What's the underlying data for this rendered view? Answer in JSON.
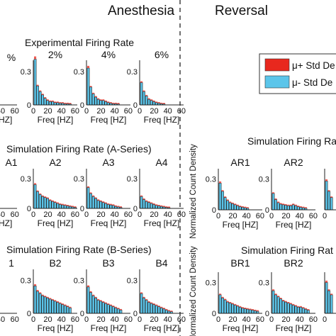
{
  "header": {
    "left": "Anesthesia",
    "right": "Reversal"
  },
  "legend": {
    "plus": {
      "label": "μ+ Std De",
      "color": "#e8281e"
    },
    "minus": {
      "label": "μ- Std De",
      "color": "#5bc5ea"
    }
  },
  "rows": [
    {
      "title": "Experimental Firing Rate",
      "ylabel": ""
    },
    {
      "title": "Simulation Firing Rate (A-Series)",
      "ylabel": ""
    },
    {
      "title": "Simulation Firing Rate (B-Series)",
      "ylabel": ""
    },
    {
      "title": "Simulation Firing Rat",
      "ylabel": "Normalized Count Density"
    },
    {
      "title": "Simulation Firing Rat",
      "ylabel": "Normalized Count Density"
    }
  ],
  "chart_data": [
    {
      "type": "bar",
      "title": "%",
      "xlabel": "[HZ]",
      "ticks": [
        "40",
        "60"
      ],
      "ylim": [
        0,
        0.4
      ],
      "values": [
        0.02,
        0.015,
        0.01,
        0.01,
        0.008,
        0.015,
        0.01,
        0.008,
        0.006,
        0.004
      ]
    },
    {
      "type": "bar",
      "title": "2%",
      "xlabel": "Freq [HZ]",
      "ticks": [
        "0",
        "20",
        "40",
        "60"
      ],
      "yticks": [
        "0.3",
        "0"
      ],
      "ylim": [
        0,
        0.4
      ],
      "values": [
        0.41,
        0.17,
        0.12,
        0.09,
        0.06,
        0.04,
        0.03,
        0.03,
        0.02,
        0.02,
        0.015,
        0.015,
        0.01,
        0.01,
        0.008
      ]
    },
    {
      "type": "bar",
      "title": "4%",
      "xlabel": "Freq [HZ]",
      "ticks": [
        "0",
        "20",
        "40",
        "60"
      ],
      "yticks": [
        "0.3",
        "0"
      ],
      "ylim": [
        0,
        0.4
      ],
      "values": [
        0.33,
        0.16,
        0.1,
        0.07,
        0.05,
        0.04,
        0.04,
        0.03,
        0.02,
        0.015,
        0.01,
        0.01,
        0.008
      ]
    },
    {
      "type": "bar",
      "title": "6%",
      "xlabel": "Freq [HZ]",
      "ticks": [
        "0",
        "20",
        "40",
        "60"
      ],
      "yticks": [
        "0.3",
        "0"
      ],
      "ylim": [
        0,
        0.4
      ],
      "values": [
        0.2,
        0.12,
        0.08,
        0.05,
        0.04,
        0.03,
        0.02,
        0.015,
        0.01,
        0.008
      ]
    },
    {
      "type": "bar",
      "title": "A1",
      "xlabel": "[HZ]",
      "ticks": [
        "40",
        "60"
      ],
      "ylim": [
        0,
        0.4
      ],
      "values": [
        0.03,
        0.025,
        0.02,
        0.02,
        0.015,
        0.012,
        0.01,
        0.01,
        0.008,
        0.006
      ]
    },
    {
      "type": "bar",
      "title": "A2",
      "xlabel": "Freq [HZ]",
      "ticks": [
        "0",
        "20",
        "40",
        "60"
      ],
      "yticks": [
        "0.3",
        "0"
      ],
      "ylim": [
        0,
        0.4
      ],
      "values": [
        0.24,
        0.17,
        0.14,
        0.12,
        0.11,
        0.1,
        0.08,
        0.07,
        0.06,
        0.05,
        0.04,
        0.035,
        0.03,
        0.025,
        0.02,
        0.015,
        0.01
      ]
    },
    {
      "type": "bar",
      "title": "A3",
      "xlabel": "Freq [HZ]",
      "ticks": [
        "0",
        "20",
        "40",
        "60"
      ],
      "yticks": [
        "0.3",
        "0"
      ],
      "ylim": [
        0,
        0.4
      ],
      "values": [
        0.21,
        0.15,
        0.12,
        0.1,
        0.08,
        0.07,
        0.06,
        0.05,
        0.04,
        0.035,
        0.03,
        0.02,
        0.015,
        0.01
      ]
    },
    {
      "type": "bar",
      "title": "A4",
      "xlabel": "Freq [HZ]",
      "ticks": [
        "0",
        "20",
        "40",
        "60"
      ],
      "yticks": [
        "0.3",
        "0"
      ],
      "ylim": [
        0,
        0.4
      ],
      "values": [
        0.12,
        0.09,
        0.07,
        0.06,
        0.05,
        0.04,
        0.03,
        0.025,
        0.02,
        0.015,
        0.01,
        0.008
      ]
    },
    {
      "type": "bar",
      "title": "1",
      "xlabel": "",
      "ticks": [
        "40",
        "60"
      ],
      "ylim": [
        0,
        0.4
      ],
      "values": [
        0.04,
        0.03,
        0.025,
        0.02,
        0.015,
        0.012,
        0.01,
        0.008
      ]
    },
    {
      "type": "bar",
      "title": "B2",
      "xlabel": "Freq [HZ]",
      "ticks": [
        "0",
        "20",
        "40",
        "60"
      ],
      "yticks": [
        "0.3",
        "0"
      ],
      "ylim": [
        0,
        0.4
      ],
      "values": [
        0.25,
        0.2,
        0.18,
        0.16,
        0.15,
        0.14,
        0.13,
        0.12,
        0.11,
        0.1,
        0.09,
        0.08,
        0.07,
        0.06,
        0.05
      ]
    },
    {
      "type": "bar",
      "title": "B3",
      "xlabel": "Freq [HZ]",
      "ticks": [
        "0",
        "20",
        "40",
        "60"
      ],
      "yticks": [
        "0.3",
        "0"
      ],
      "ylim": [
        0,
        0.4
      ],
      "values": [
        0.24,
        0.19,
        0.16,
        0.14,
        0.12,
        0.11,
        0.1,
        0.09,
        0.08,
        0.07,
        0.06,
        0.05,
        0.04,
        0.03
      ]
    },
    {
      "type": "bar",
      "title": "B4",
      "xlabel": "Freq [HZ]",
      "ticks": [
        "0",
        "20",
        "40",
        "60"
      ],
      "yticks": [
        "0.3",
        "0"
      ],
      "ylim": [
        0,
        0.4
      ],
      "values": [
        0.18,
        0.14,
        0.12,
        0.1,
        0.09,
        0.08,
        0.07,
        0.06,
        0.05,
        0.04,
        0.03,
        0.02,
        0.015
      ]
    },
    {
      "type": "bar",
      "title": "AR1",
      "xlabel": "Freq [HZ]",
      "ticks": [
        "0",
        "20",
        "40",
        "60"
      ],
      "yticks": [
        "0.3",
        "0"
      ],
      "ylim": [
        0,
        0.4
      ],
      "values": [
        0.26,
        0.18,
        0.12,
        0.09,
        0.07,
        0.06,
        0.05,
        0.04,
        0.03,
        0.025,
        0.02,
        0.015
      ]
    },
    {
      "type": "bar",
      "title": "AR2",
      "xlabel": "Freq [HZ]",
      "ticks": [
        "0",
        "20",
        "40",
        "60"
      ],
      "yticks": [
        "0.3",
        "0"
      ],
      "ylim": [
        0,
        0.4
      ],
      "values": [
        0.16,
        0.1,
        0.07,
        0.055,
        0.05,
        0.045,
        0.04,
        0.04,
        0.05,
        0.04,
        0.03,
        0.025,
        0.02,
        0.015
      ]
    },
    {
      "type": "bar",
      "title": "",
      "xlabel": "",
      "ticks": [
        "0"
      ],
      "ylim": [
        0,
        0.4
      ],
      "values": [
        0.28,
        0.18,
        0.12
      ]
    },
    {
      "type": "bar",
      "title": "BR1",
      "xlabel": "Freq [HZ]",
      "ticks": [
        "0",
        "20",
        "40",
        "60"
      ],
      "yticks": [
        "0.3",
        "0"
      ],
      "ylim": [
        0,
        0.4
      ],
      "values": [
        0.18,
        0.15,
        0.13,
        0.11,
        0.1,
        0.09,
        0.08,
        0.07,
        0.06,
        0.05,
        0.045,
        0.04,
        0.035,
        0.03,
        0.025,
        0.02
      ]
    },
    {
      "type": "bar",
      "title": "BR2",
      "xlabel": "Freq [HZ]",
      "ticks": [
        "0",
        "20",
        "40",
        "60"
      ],
      "yticks": [
        "0.3",
        "0"
      ],
      "ylim": [
        0,
        0.4
      ],
      "values": [
        0.22,
        0.18,
        0.16,
        0.14,
        0.12,
        0.11,
        0.1,
        0.09,
        0.08,
        0.07,
        0.06,
        0.06,
        0.05,
        0.04,
        0.03
      ]
    },
    {
      "type": "bar",
      "title": "",
      "xlabel": "",
      "ticks": [
        "0"
      ],
      "ylim": [
        0,
        0.4
      ],
      "values": [
        0.3,
        0.22,
        0.18
      ]
    }
  ]
}
